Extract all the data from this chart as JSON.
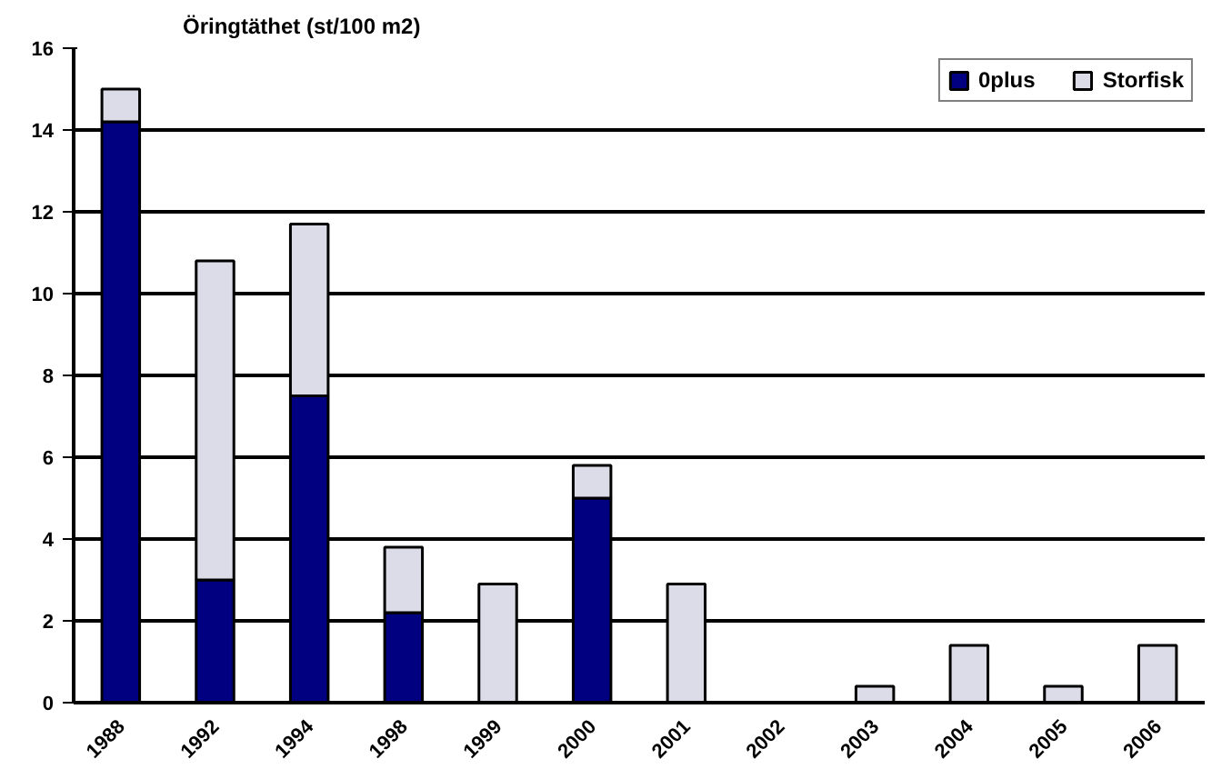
{
  "chart_data": {
    "type": "bar",
    "title": "Öringtäthet (st/100 m2)",
    "stacked": true,
    "categories": [
      "1988",
      "1992",
      "1994",
      "1998",
      "1999",
      "2000",
      "2001",
      "2002",
      "2003",
      "2004",
      "2005",
      "2006"
    ],
    "series": [
      {
        "name": "0plus",
        "color": "#000080",
        "values": [
          14.2,
          3.0,
          7.5,
          2.2,
          0,
          5.0,
          0,
          0,
          0,
          0,
          0,
          0
        ]
      },
      {
        "name": "Storfisk",
        "color": "#dcdce8",
        "values": [
          0.8,
          7.8,
          4.2,
          1.6,
          2.9,
          0.8,
          2.9,
          0,
          0.4,
          1.4,
          0.4,
          1.4
        ]
      }
    ],
    "ylim": [
      0,
      16
    ],
    "yticks": [
      0,
      2,
      4,
      6,
      8,
      10,
      12,
      14,
      16
    ],
    "grid": "y",
    "legend": "top right"
  }
}
